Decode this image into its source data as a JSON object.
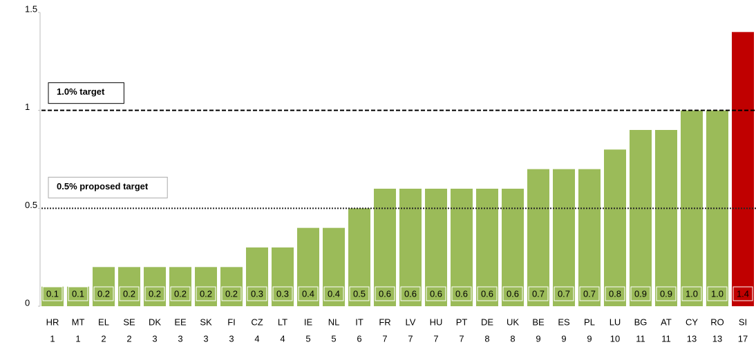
{
  "chart_data": {
    "type": "bar",
    "categories": [
      "HR",
      "MT",
      "EL",
      "SE",
      "DK",
      "EE",
      "SK",
      "FI",
      "CZ",
      "LT",
      "IE",
      "NL",
      "IT",
      "FR",
      "LV",
      "HU",
      "PT",
      "DE",
      "UK",
      "BE",
      "ES",
      "PL",
      "LU",
      "BG",
      "AT",
      "CY",
      "RO",
      "SI"
    ],
    "ranks": [
      "1",
      "1",
      "2",
      "2",
      "3",
      "3",
      "3",
      "3",
      "4",
      "4",
      "5",
      "5",
      "6",
      "7",
      "7",
      "7",
      "7",
      "8",
      "8",
      "9",
      "9",
      "9",
      "10",
      "11",
      "11",
      "13",
      "13",
      "17"
    ],
    "values": [
      0.1,
      0.1,
      0.2,
      0.2,
      0.2,
      0.2,
      0.2,
      0.2,
      0.3,
      0.3,
      0.4,
      0.4,
      0.5,
      0.6,
      0.6,
      0.6,
      0.6,
      0.6,
      0.6,
      0.7,
      0.7,
      0.7,
      0.8,
      0.9,
      0.9,
      1,
      1,
      1.4
    ],
    "value_labels": [
      "0.1",
      "0.1",
      "0.2",
      "0.2",
      "0.2",
      "0.2",
      "0.2",
      "0.2",
      "0.3",
      "0.3",
      "0.4",
      "0.4",
      "0.5",
      "0.6",
      "0.6",
      "0.6",
      "0.6",
      "0.6",
      "0.6",
      "0.7",
      "0.7",
      "0.7",
      "0.8",
      "0.9",
      "0.9",
      "1.0",
      "1.0",
      "1.4"
    ],
    "colors": [
      "#9bbb59",
      "#9bbb59",
      "#9bbb59",
      "#9bbb59",
      "#9bbb59",
      "#9bbb59",
      "#9bbb59",
      "#9bbb59",
      "#9bbb59",
      "#9bbb59",
      "#9bbb59",
      "#9bbb59",
      "#9bbb59",
      "#9bbb59",
      "#9bbb59",
      "#9bbb59",
      "#9bbb59",
      "#9bbb59",
      "#9bbb59",
      "#9bbb59",
      "#9bbb59",
      "#9bbb59",
      "#9bbb59",
      "#9bbb59",
      "#9bbb59",
      "#9bbb59",
      "#9bbb59",
      "#c00000"
    ],
    "ylim": [
      0,
      1.5
    ],
    "yticks": [
      0,
      0.5,
      1,
      1.5
    ],
    "annotations": [
      {
        "text": "1.0% target",
        "value": 1,
        "color": "#000000",
        "style": "dashed"
      },
      {
        "text": "0.5% proposed target",
        "value": 0.5,
        "color": "#999999",
        "style": "dotted"
      }
    ]
  }
}
